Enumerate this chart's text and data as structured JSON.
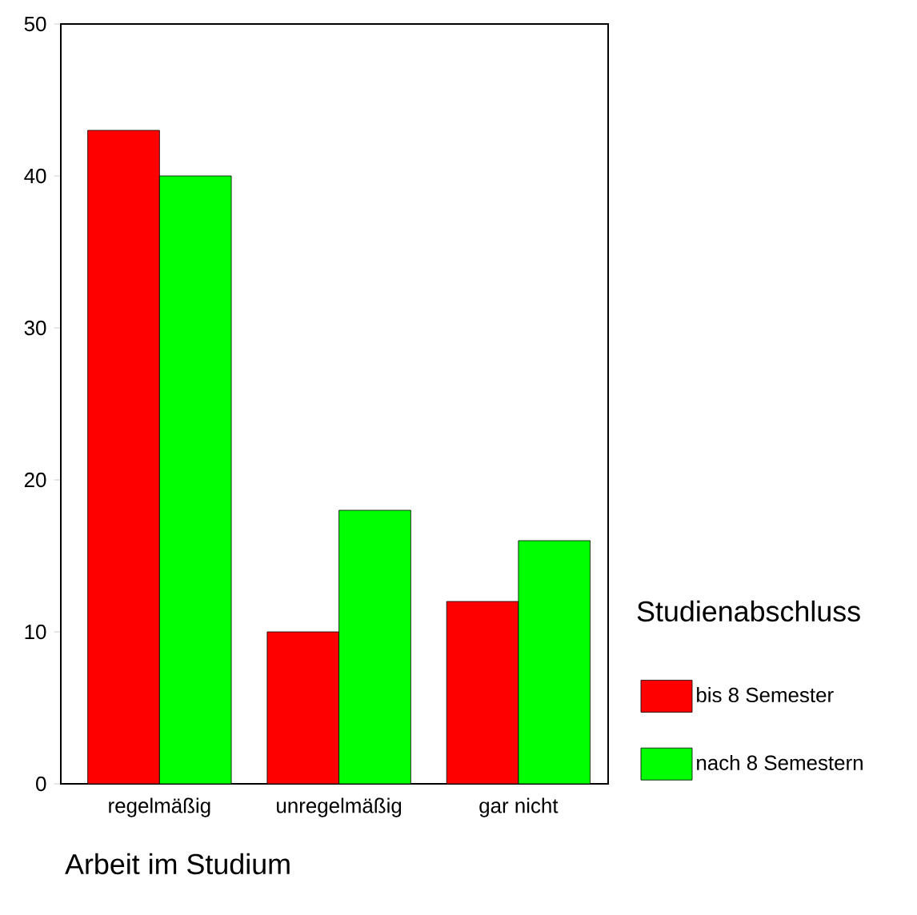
{
  "chart_data": {
    "type": "bar",
    "xlabel": "Arbeit im Studium",
    "legend_title": "Studienabschluss",
    "categories": [
      "regelmäßig",
      "unregelmäßig",
      "gar nicht"
    ],
    "series": [
      {
        "name": "bis 8 Semester",
        "color": "#ff0000",
        "values": [
          43,
          10,
          12
        ]
      },
      {
        "name": "nach 8 Semestern",
        "color": "#00ff00",
        "values": [
          40,
          18,
          16
        ]
      }
    ],
    "ylim": [
      0,
      50
    ],
    "yticks": [
      0,
      10,
      20,
      30,
      40,
      50
    ],
    "grid": false,
    "legend": "right"
  }
}
